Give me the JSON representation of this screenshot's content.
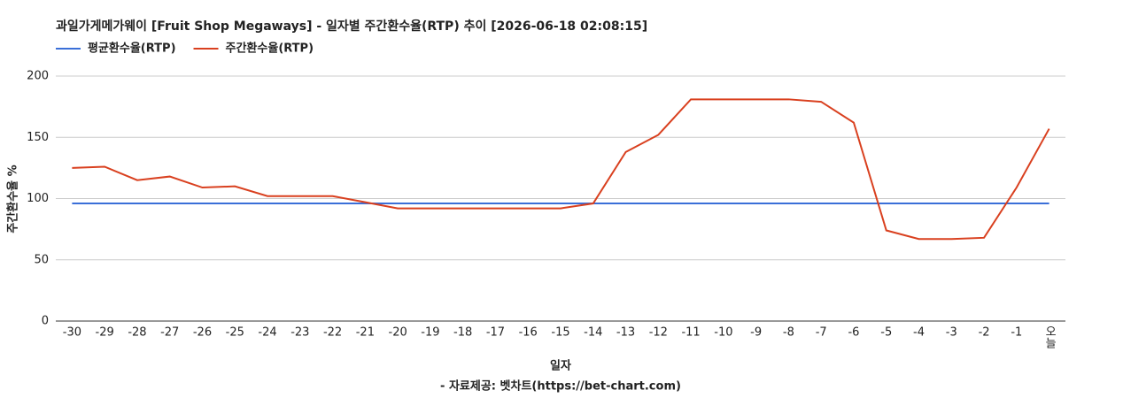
{
  "chart_data": {
    "type": "line",
    "title": "과일가게메가웨이 [Fruit Shop Megaways] - 일자별 주간환수율(RTP) 추이 [2026-06-18 02:08:15]",
    "x_label": "일자",
    "y_label": "주간환수율 %",
    "source": "- 자료제공: 벳차트(https://bet-chart.com)",
    "categories": [
      "-30",
      "-29",
      "-28",
      "-27",
      "-26",
      "-25",
      "-24",
      "-23",
      "-22",
      "-21",
      "-20",
      "-19",
      "-18",
      "-17",
      "-16",
      "-15",
      "-14",
      "-13",
      "-12",
      "-11",
      "-10",
      "-9",
      "-8",
      "-7",
      "-6",
      "-5",
      "-4",
      "-3",
      "-2",
      "-1",
      "오늘"
    ],
    "series": [
      {
        "name": "평균환수율(RTP)",
        "color": "#3a6fd8",
        "values": [
          96,
          96,
          96,
          96,
          96,
          96,
          96,
          96,
          96,
          96,
          96,
          96,
          96,
          96,
          96,
          96,
          96,
          96,
          96,
          96,
          96,
          96,
          96,
          96,
          96,
          96,
          96,
          96,
          96,
          96,
          96
        ]
      },
      {
        "name": "주간환수율(RTP)",
        "color": "#d9401f",
        "values": [
          125,
          126,
          115,
          118,
          109,
          110,
          102,
          102,
          102,
          97,
          92,
          92,
          92,
          92,
          92,
          92,
          96,
          138,
          152,
          181,
          181,
          181,
          181,
          179,
          162,
          74,
          67,
          67,
          68,
          109,
          157
        ]
      }
    ],
    "ylim": [
      0,
      200
    ],
    "yticks": [
      0,
      50,
      100,
      150,
      200
    ],
    "grid": true,
    "legend": "top-left"
  }
}
